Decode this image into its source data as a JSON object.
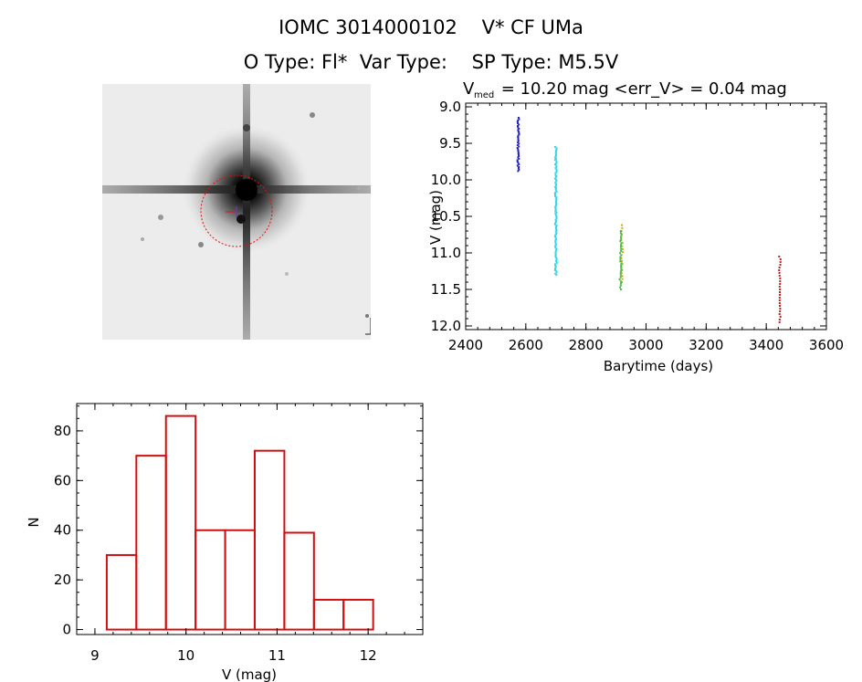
{
  "header": {
    "line1": "IOMC 3014000102    V* CF UMa",
    "line2": "O Type: Fl*  Var Type:    SP Type: M5.5V"
  },
  "image_panel": {
    "label_top_left": "",
    "label_center": "",
    "label_bottom_left": "",
    "label_bottom_center": ""
  },
  "chart_data": [
    {
      "type": "scatter",
      "title_parts": {
        "prefix": "V",
        "subscript": "med",
        "rest": " = 10.20 mag <err_V> = 0.04 mag"
      },
      "xlabel": "Barytime (days)",
      "ylabel": "V (mag)",
      "xlim": [
        2400,
        3600
      ],
      "ylim": [
        12.05,
        8.95
      ],
      "y_inverted": true,
      "xticks": [
        2400,
        2600,
        2800,
        3000,
        3200,
        3400,
        3600
      ],
      "yticks": [
        "9.0",
        "9.5",
        "10.0",
        "10.5",
        "11.0",
        "11.5",
        "12.0"
      ],
      "grid": false,
      "series": [
        {
          "color": "#2020c8",
          "x_center": 2575,
          "x_spread": 6,
          "y_min": 9.15,
          "y_max": 9.88,
          "n": 40,
          "seed": 11
        },
        {
          "color": "#30d8e8",
          "x_center": 2700,
          "x_spread": 6,
          "y_min": 9.55,
          "y_max": 11.3,
          "n": 110,
          "seed": 23
        },
        {
          "color": "#e8a000",
          "x_center": 2920,
          "x_spread": 6,
          "y_min": 10.62,
          "y_max": 11.4,
          "n": 20,
          "seed": 31
        },
        {
          "color": "#40c040",
          "x_center": 2915,
          "x_spread": 6,
          "y_min": 10.7,
          "y_max": 11.5,
          "n": 30,
          "seed": 37
        },
        {
          "color": "#c82020",
          "x_center": 3445,
          "x_spread": 5,
          "y_min": 11.05,
          "y_max": 11.95,
          "n": 25,
          "seed": 47
        }
      ]
    },
    {
      "type": "bar",
      "subtype": "histogram",
      "xlabel": "V (mag)",
      "ylabel": "N",
      "xlim": [
        8.8,
        12.6
      ],
      "ylim": [
        -2,
        91
      ],
      "xticks": [
        "9",
        "10",
        "11",
        "12"
      ],
      "yticks": [
        "0",
        "20",
        "40",
        "60",
        "80"
      ],
      "bin_edges": [
        9.13,
        9.455,
        9.78,
        10.105,
        10.43,
        10.755,
        11.08,
        11.405,
        11.73,
        12.055
      ],
      "values": [
        30,
        70,
        86,
        40,
        40,
        72,
        39,
        12,
        12
      ],
      "bar_color": "#d01010"
    }
  ]
}
